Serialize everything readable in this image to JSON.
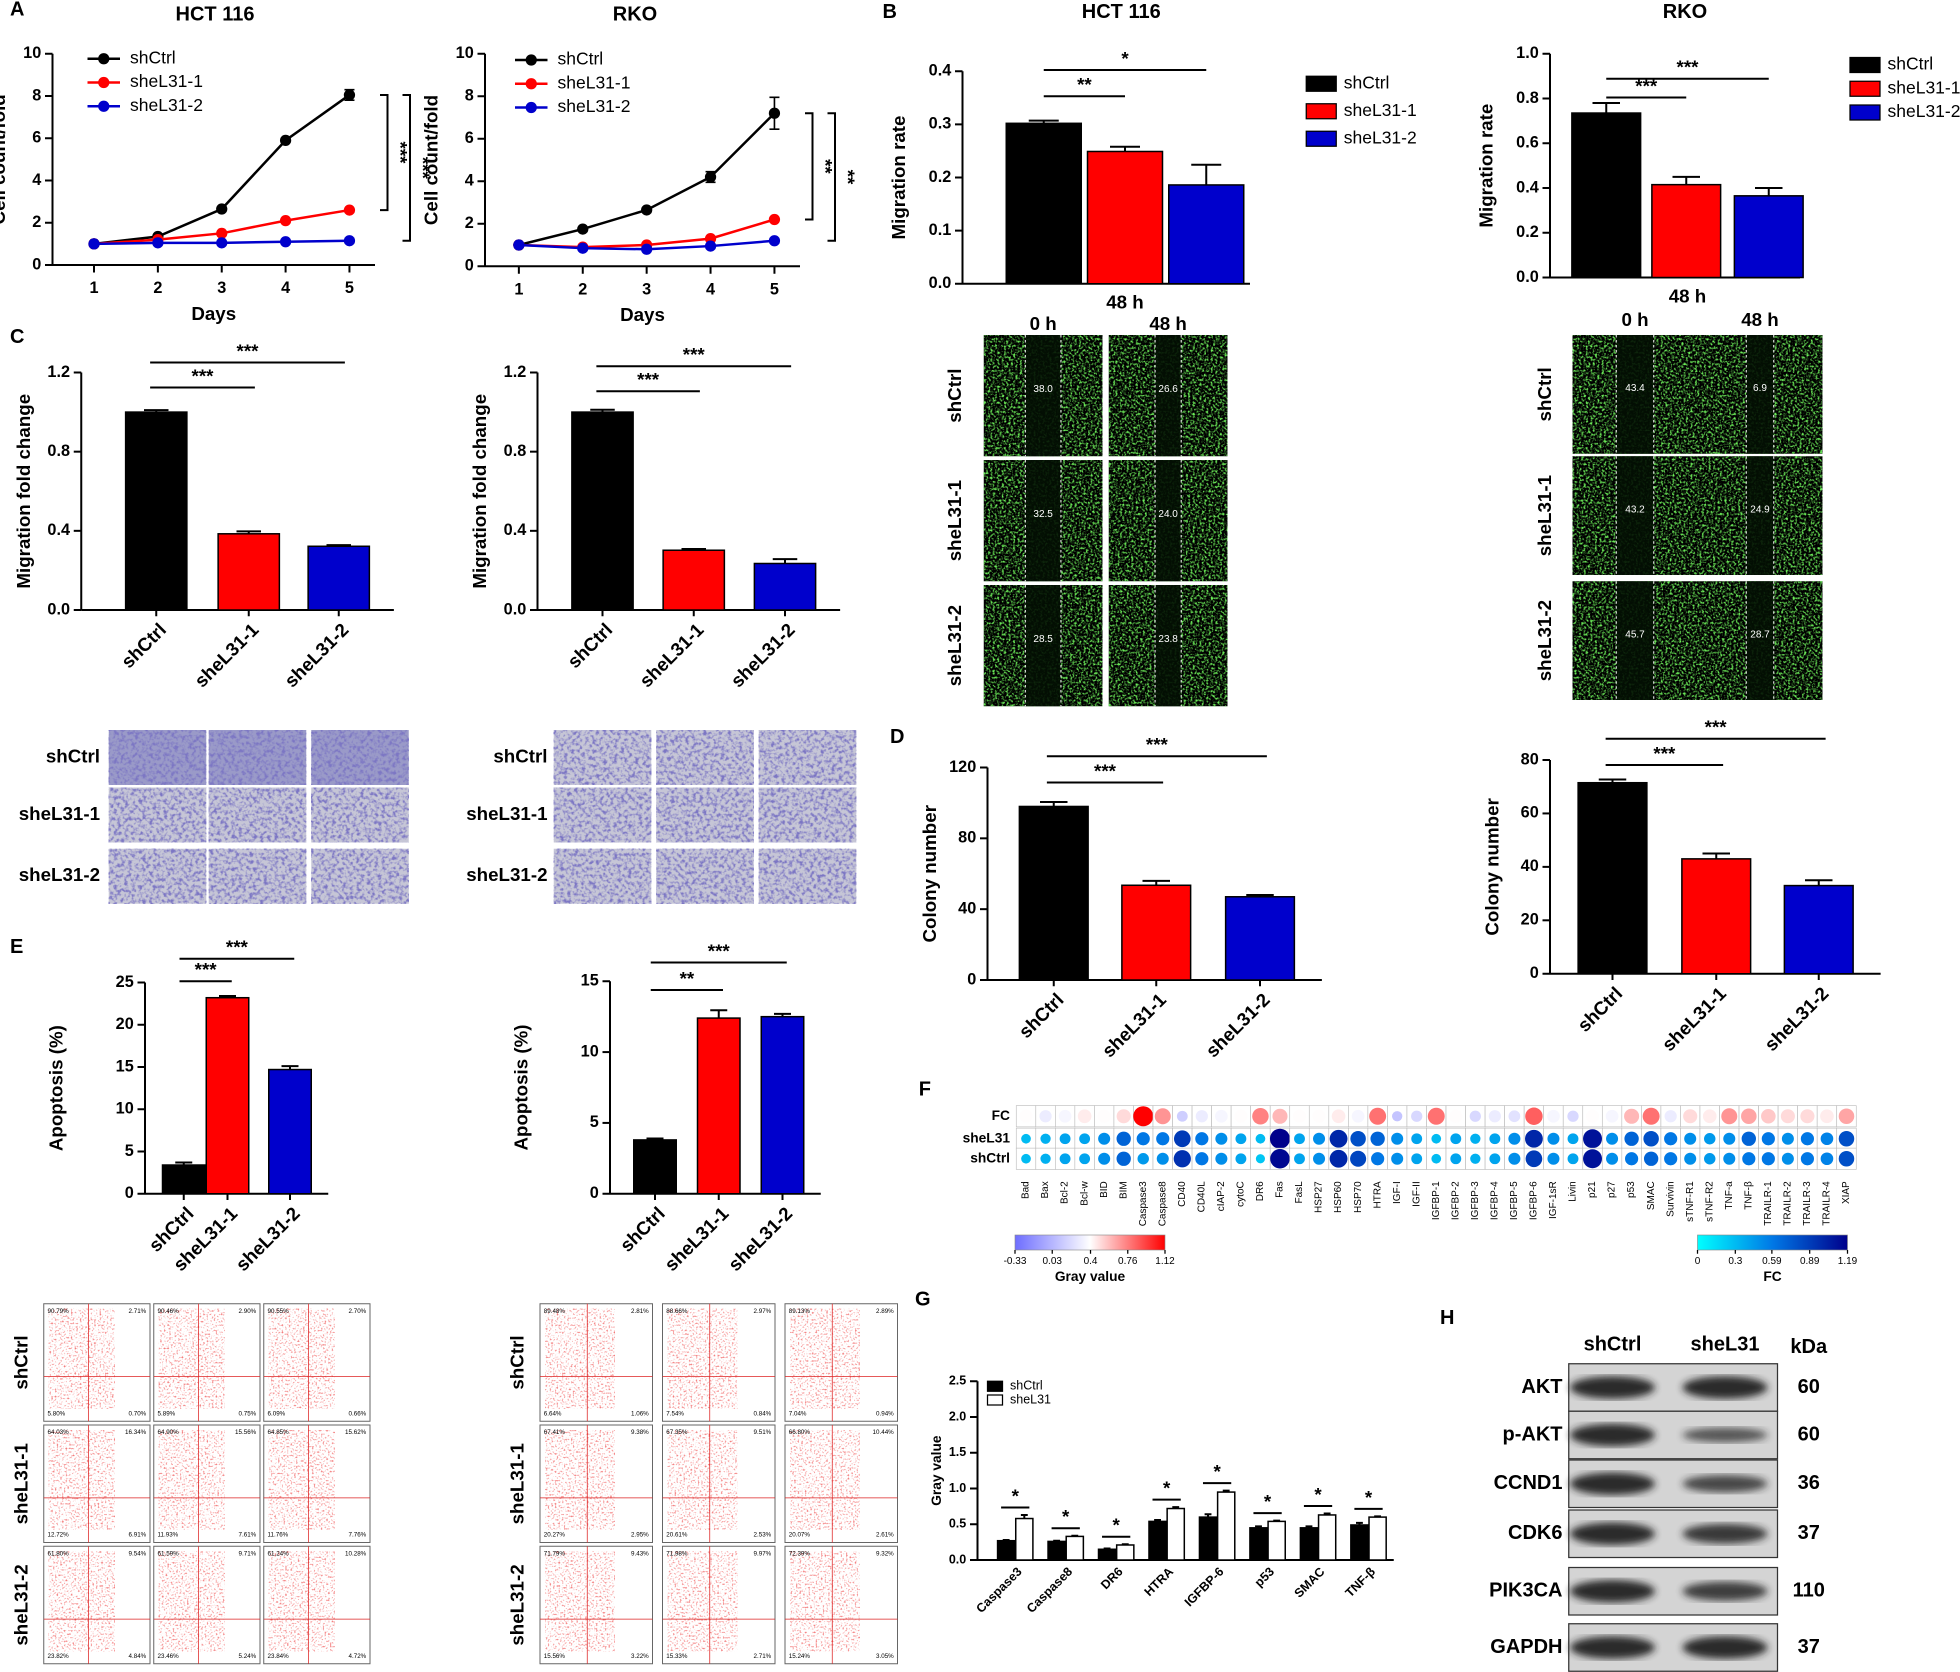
{
  "panel_letters": [
    "A",
    "B",
    "C",
    "D",
    "E",
    "F",
    "G",
    "H"
  ],
  "chart_data": [
    {
      "type": "line",
      "title": "HCT 116",
      "xlabel": "Days",
      "ylabel": "Cell count/fold",
      "x": [
        1,
        2,
        3,
        4,
        5
      ],
      "xlim": [
        0.35,
        5.4
      ],
      "xticks": [
        1,
        2,
        3,
        4,
        5
      ],
      "ylim": [
        0,
        10
      ],
      "yticks": [
        0,
        2,
        4,
        6,
        8,
        10
      ],
      "series": [
        {
          "name": "shCtrl",
          "color": "#000000",
          "values": [
            1.0,
            1.35,
            2.65,
            5.9,
            8.05
          ],
          "errors": [
            0.05,
            0.05,
            0.08,
            0.08,
            0.25
          ]
        },
        {
          "name": "sheL31-1",
          "color": "#ff0000",
          "values": [
            1.0,
            1.2,
            1.5,
            2.1,
            2.6
          ],
          "errors": [
            0.05,
            0.04,
            0.05,
            0.06,
            0.08
          ]
        },
        {
          "name": "sheL31-2",
          "color": "#0000cc",
          "values": [
            1.0,
            1.05,
            1.05,
            1.1,
            1.15
          ],
          "errors": [
            0.04,
            0.04,
            0.04,
            0.05,
            0.1
          ]
        }
      ],
      "annotations": [
        "***",
        "***"
      ]
    },
    {
      "type": "line",
      "title": "RKO",
      "xlabel": "Days",
      "ylabel": "Cell count/fold",
      "x": [
        1,
        2,
        3,
        4,
        5
      ],
      "xlim": [
        0.47,
        5.4
      ],
      "xticks": [
        1,
        2,
        3,
        4,
        5
      ],
      "ylim": [
        0,
        10
      ],
      "yticks": [
        0,
        2,
        4,
        6,
        8,
        10
      ],
      "series": [
        {
          "name": "shCtrl",
          "color": "#000000",
          "values": [
            1.0,
            1.75,
            2.65,
            4.2,
            7.2
          ],
          "errors": [
            0.05,
            0.06,
            0.08,
            0.25,
            0.75
          ]
        },
        {
          "name": "sheL31-1",
          "color": "#ff0000",
          "values": [
            1.0,
            0.9,
            1.0,
            1.3,
            2.2
          ],
          "errors": [
            0.05,
            0.04,
            0.05,
            0.06,
            0.08
          ]
        },
        {
          "name": "sheL31-2",
          "color": "#0000cc",
          "values": [
            1.0,
            0.85,
            0.8,
            0.95,
            1.2
          ],
          "errors": [
            0.04,
            0.04,
            0.04,
            0.05,
            0.1
          ]
        }
      ],
      "annotations": [
        "**",
        "**"
      ]
    },
    {
      "type": "bar",
      "title": "HCT 116",
      "ylabel": "Migration rate",
      "categories": [
        "48 h"
      ],
      "ylim": [
        0,
        0.4
      ],
      "yticks": [
        {
          "value": 0,
          "label": "0.0"
        },
        0.1,
        0.2,
        0.3,
        0.4
      ],
      "series": [
        {
          "name": "shCtrl",
          "color": "#000000",
          "values": [
            0.302
          ],
          "errors": [
            0.005
          ]
        },
        {
          "name": "sheL31-1",
          "color": "#ff0000",
          "values": [
            0.249
          ],
          "errors": [
            0.009
          ]
        },
        {
          "name": "sheL31-2",
          "color": "#0000cc",
          "values": [
            0.186
          ],
          "errors": [
            0.038
          ]
        }
      ],
      "annotations": [
        "**",
        "*"
      ]
    },
    {
      "type": "bar",
      "title": "RKO",
      "ylabel": "Migration rate",
      "categories": [
        "48 h"
      ],
      "ylim": [
        0,
        1
      ],
      "yticks": [
        {
          "value": 0,
          "label": "0.0"
        },
        0.2,
        0.4,
        0.6,
        0.8,
        {
          "value": 1,
          "label": "1.0"
        }
      ],
      "series": [
        {
          "name": "shCtrl",
          "color": "#000000",
          "values": [
            0.735
          ],
          "errors": [
            0.045
          ]
        },
        {
          "name": "sheL31-1",
          "color": "#ff0000",
          "values": [
            0.415
          ],
          "errors": [
            0.035
          ]
        },
        {
          "name": "sheL31-2",
          "color": "#0000cc",
          "values": [
            0.365
          ],
          "errors": [
            0.035
          ]
        }
      ],
      "annotations": [
        "***",
        "***"
      ]
    },
    {
      "type": "bar",
      "ylabel": "Migration fold change",
      "categories": [
        "shCtrl",
        "sheL31-1",
        "sheL31-2"
      ],
      "colors": [
        "#000000",
        "#ff0000",
        "#0000cc"
      ],
      "values": [
        1.0,
        0.385,
        0.322
      ],
      "errors": [
        0.01,
        0.012,
        0.006
      ],
      "ylim": [
        0,
        1.2
      ],
      "yticks": [
        {
          "value": 0,
          "label": "0.0"
        },
        0.4,
        0.8,
        1.2
      ],
      "annotations": [
        "***",
        "***"
      ]
    },
    {
      "type": "bar",
      "ylabel": "Migration fold change",
      "categories": [
        "shCtrl",
        "sheL31-1",
        "sheL31-2"
      ],
      "colors": [
        "#000000",
        "#ff0000",
        "#0000cc"
      ],
      "values": [
        1.0,
        0.302,
        0.235
      ],
      "errors": [
        0.012,
        0.006,
        0.022
      ],
      "ylim": [
        0,
        1.2
      ],
      "yticks": [
        {
          "value": 0,
          "label": "0.0"
        },
        0.4,
        0.8,
        1.2
      ],
      "annotations": [
        "***",
        "***"
      ]
    },
    {
      "type": "bar",
      "ylabel": "Colony number",
      "categories": [
        "shCtrl",
        "sheL31-1",
        "sheL31-2"
      ],
      "colors": [
        "#000000",
        "#ff0000",
        "#0000cc"
      ],
      "values": [
        98,
        53.5,
        47
      ],
      "errors": [
        2.5,
        2.5,
        1
      ],
      "ylim": [
        0,
        120
      ],
      "yticks": [
        0,
        40,
        80,
        120
      ],
      "annotations": [
        "***",
        "***"
      ]
    },
    {
      "type": "bar",
      "ylabel": "Colony number",
      "categories": [
        "shCtrl",
        "sheL31-1",
        "sheL31-2"
      ],
      "colors": [
        "#000000",
        "#ff0000",
        "#0000cc"
      ],
      "values": [
        71.5,
        43,
        33
      ],
      "errors": [
        1.2,
        2,
        2
      ],
      "ylim": [
        0,
        80
      ],
      "yticks": [
        0,
        20,
        40,
        60,
        80
      ],
      "annotations": [
        "***",
        "***"
      ]
    },
    {
      "type": "bar",
      "ylabel": "Apoptosis (%)",
      "categories": [
        "shCtrl",
        "sheL31-1",
        "sheL31-2"
      ],
      "colors": [
        "#000000",
        "#ff0000",
        "#0000cc"
      ],
      "values": [
        3.4,
        23.2,
        14.7
      ],
      "errors": [
        0.3,
        0.2,
        0.4
      ],
      "ylim": [
        0,
        25
      ],
      "yticks": [
        0,
        5,
        10,
        15,
        20,
        25
      ],
      "annotations": [
        "***",
        "***"
      ]
    },
    {
      "type": "bar",
      "ylabel": "Apoptosis (%)",
      "categories": [
        "shCtrl",
        "sheL31-1",
        "sheL31-2"
      ],
      "colors": [
        "#000000",
        "#ff0000",
        "#0000cc"
      ],
      "values": [
        3.8,
        12.4,
        12.5
      ],
      "errors": [
        0.1,
        0.55,
        0.2
      ],
      "ylim": [
        0,
        15
      ],
      "yticks": [
        0,
        5,
        10,
        15
      ],
      "annotations": [
        "**",
        "***"
      ]
    },
    {
      "type": "bar",
      "ylabel": "Gray value",
      "categories": [
        "Caspase3",
        "Caspase8",
        "DR6",
        "HTRA",
        "IGFBP-6",
        "p53",
        "SMAC",
        "TNF-β"
      ],
      "ylim": [
        0,
        2.5
      ],
      "yticks": [
        {
          "value": 0,
          "label": "0.0"
        },
        0.5,
        {
          "value": 1,
          "label": "1.0"
        },
        1.5,
        {
          "value": 2,
          "label": "2.0"
        },
        2.5
      ],
      "series": [
        {
          "name": "shCtrl",
          "color": "#000000",
          "values": [
            0.27,
            0.26,
            0.15,
            0.54,
            0.6,
            0.45,
            0.45,
            0.49
          ],
          "errors": [
            0.01,
            0.01,
            0.01,
            0.02,
            0.04,
            0.02,
            0.02,
            0.03
          ]
        },
        {
          "name": "sheL31",
          "color": "#ffffff",
          "values": [
            0.58,
            0.33,
            0.21,
            0.72,
            0.95,
            0.54,
            0.63,
            0.6
          ],
          "errors": [
            0.05,
            0.01,
            0.01,
            0.02,
            0.02,
            0.01,
            0.02,
            0.01
          ]
        }
      ],
      "annotations": [
        "*",
        "*",
        "*",
        "*",
        "*",
        "*",
        "*",
        "*"
      ]
    },
    {
      "type": "dot_heatmap",
      "rows": [
        "FC",
        "sheL31",
        "shCtrl"
      ],
      "columns": [
        "Bad",
        "Bax",
        "Bcl-2",
        "Bcl-w",
        "BID",
        "BIM",
        "Caspase3",
        "Caspase8",
        "CD40",
        "CD40L",
        "cIAP-2",
        "cytoC",
        "DR6",
        "Fas",
        "FasL",
        "HSP27",
        "HSP60",
        "HSP70",
        "HTRA",
        "IGF-I",
        "IGF-II",
        "IGFBP-1",
        "IGFBP-2",
        "IGFBP-3",
        "IGFBP-4",
        "IGFBP-5",
        "IGFBP-6",
        "IGF-1sR",
        "Livin",
        "p21",
        "p27",
        "p53",
        "SMAC",
        "Survivin",
        "sTNF-R1",
        "sTNF-R2",
        "TNF-a",
        "TNF-β",
        "TRAILR-1",
        "TRAILR-2",
        "TRAILR-3",
        "TRAILR-4",
        "XIAP"
      ],
      "values": [
        [
          0.4,
          0.3,
          0.35,
          0.45,
          0.4,
          0.5,
          1.12,
          0.7,
          0.15,
          0.3,
          0.35,
          0.4,
          0.75,
          0.6,
          0.4,
          0.4,
          0.45,
          0.35,
          0.8,
          0.1,
          0.2,
          0.8,
          0.4,
          0.2,
          0.3,
          0.25,
          0.85,
          0.35,
          0.2,
          0.4,
          0.35,
          0.6,
          0.8,
          0.3,
          0.5,
          0.45,
          0.7,
          0.65,
          0.55,
          0.5,
          0.5,
          0.45,
          0.65
        ],
        [
          0.3,
          0.35,
          0.4,
          0.4,
          0.5,
          0.7,
          0.6,
          0.6,
          0.9,
          0.6,
          0.5,
          0.4,
          0.3,
          1.19,
          0.4,
          0.5,
          1.0,
          0.8,
          0.7,
          0.5,
          0.4,
          0.3,
          0.4,
          0.35,
          0.4,
          0.5,
          1.0,
          0.5,
          0.4,
          1.1,
          0.5,
          0.7,
          0.8,
          0.6,
          0.5,
          0.45,
          0.5,
          0.7,
          0.6,
          0.5,
          0.6,
          0.55,
          0.8
        ],
        [
          0.3,
          0.35,
          0.4,
          0.4,
          0.5,
          0.7,
          0.45,
          0.5,
          0.95,
          0.6,
          0.5,
          0.4,
          0.25,
          1.15,
          0.4,
          0.5,
          1.0,
          0.85,
          0.6,
          0.5,
          0.4,
          0.3,
          0.4,
          0.35,
          0.4,
          0.5,
          0.9,
          0.5,
          0.4,
          1.1,
          0.5,
          0.6,
          0.7,
          0.6,
          0.5,
          0.45,
          0.5,
          0.6,
          0.6,
          0.5,
          0.6,
          0.55,
          0.8
        ]
      ],
      "colorbars": [
        {
          "label": "Gray value",
          "clim": [
            -0.33,
            1.12
          ],
          "ticks": [
            -0.33,
            0.03,
            0.4,
            0.76,
            1.12
          ]
        },
        {
          "label": "FC",
          "clim": [
            0,
            1.19
          ],
          "ticks": [
            0,
            0.3,
            0.59,
            0.89,
            1.19
          ]
        }
      ]
    }
  ],
  "scratch_assay": [
    {
      "columns": [
        "0 h",
        "48 h"
      ],
      "rows": [
        "shCtrl",
        "sheL31-1",
        "sheL31-2"
      ],
      "gap_labels": [
        [
          "38.0",
          "26.6"
        ],
        [
          "32.5",
          "24.0"
        ],
        [
          "28.5",
          "23.8"
        ]
      ]
    },
    {
      "columns": [
        "0 h",
        "48 h"
      ],
      "rows": [
        "shCtrl",
        "sheL31-1",
        "sheL31-2"
      ],
      "gap_labels": [
        [
          "43.4",
          "6.9"
        ],
        [
          "43.2",
          "24.9"
        ],
        [
          "45.7",
          "28.7"
        ]
      ]
    }
  ],
  "transwell": [
    {
      "rows": [
        "shCtrl",
        "sheL31-1",
        "sheL31-2"
      ]
    },
    {
      "rows": [
        "shCtrl",
        "sheL31-1",
        "sheL31-2"
      ]
    }
  ],
  "flow_cytometry": [
    {
      "rows": [
        "shCtrl",
        "sheL31-1",
        "sheL31-2"
      ],
      "plots": [
        [
          [
            "90.79%",
            "2.71%",
            "5.80%",
            "0.70%"
          ],
          [
            "90.46%",
            "2.90%",
            "5.89%",
            "0.75%"
          ],
          [
            "90.55%",
            "2.70%",
            "6.09%",
            "0.66%"
          ]
        ],
        [
          [
            "64.03%",
            "16.34%",
            "12.72%",
            "6.91%"
          ],
          [
            "64.90%",
            "15.56%",
            "11.93%",
            "7.61%"
          ],
          [
            "64.85%",
            "15.62%",
            "11.76%",
            "7.76%"
          ]
        ],
        [
          [
            "61.80%",
            "9.54%",
            "23.82%",
            "4.84%"
          ],
          [
            "61.59%",
            "9.71%",
            "23.46%",
            "5.24%"
          ],
          [
            "61.24%",
            "10.28%",
            "23.84%",
            "4.72%"
          ]
        ]
      ]
    },
    {
      "rows": [
        "shCtrl",
        "sheL31-1",
        "sheL31-2"
      ],
      "plots": [
        [
          [
            "89.48%",
            "2.81%",
            "6.64%",
            "1.06%"
          ],
          [
            "88.66%",
            "2.97%",
            "7.54%",
            "0.84%"
          ],
          [
            "89.13%",
            "2.89%",
            "7.04%",
            "0.94%"
          ]
        ],
        [
          [
            "67.41%",
            "9.38%",
            "20.27%",
            "2.95%"
          ],
          [
            "67.35%",
            "9.51%",
            "20.61%",
            "2.53%"
          ],
          [
            "66.80%",
            "10.44%",
            "20.07%",
            "2.61%"
          ]
        ],
        [
          [
            "71.79%",
            "9.43%",
            "15.56%",
            "3.22%"
          ],
          [
            "71.98%",
            "9.97%",
            "15.33%",
            "2.71%"
          ],
          [
            "72.39%",
            "9.32%",
            "15.24%",
            "3.05%"
          ]
        ]
      ]
    }
  ],
  "western_blot": {
    "columns": [
      "shCtrl",
      "sheL31"
    ],
    "unit": "kDa",
    "rows": [
      {
        "protein": "AKT",
        "kda": 60
      },
      {
        "protein": "p-AKT",
        "kda": 60
      },
      {
        "protein": "CCND1",
        "kda": 36
      },
      {
        "protein": "CDK6",
        "kda": 37
      },
      {
        "protein": "PIK3CA",
        "kda": 110
      },
      {
        "protein": "GAPDH",
        "kda": 37
      }
    ]
  }
}
